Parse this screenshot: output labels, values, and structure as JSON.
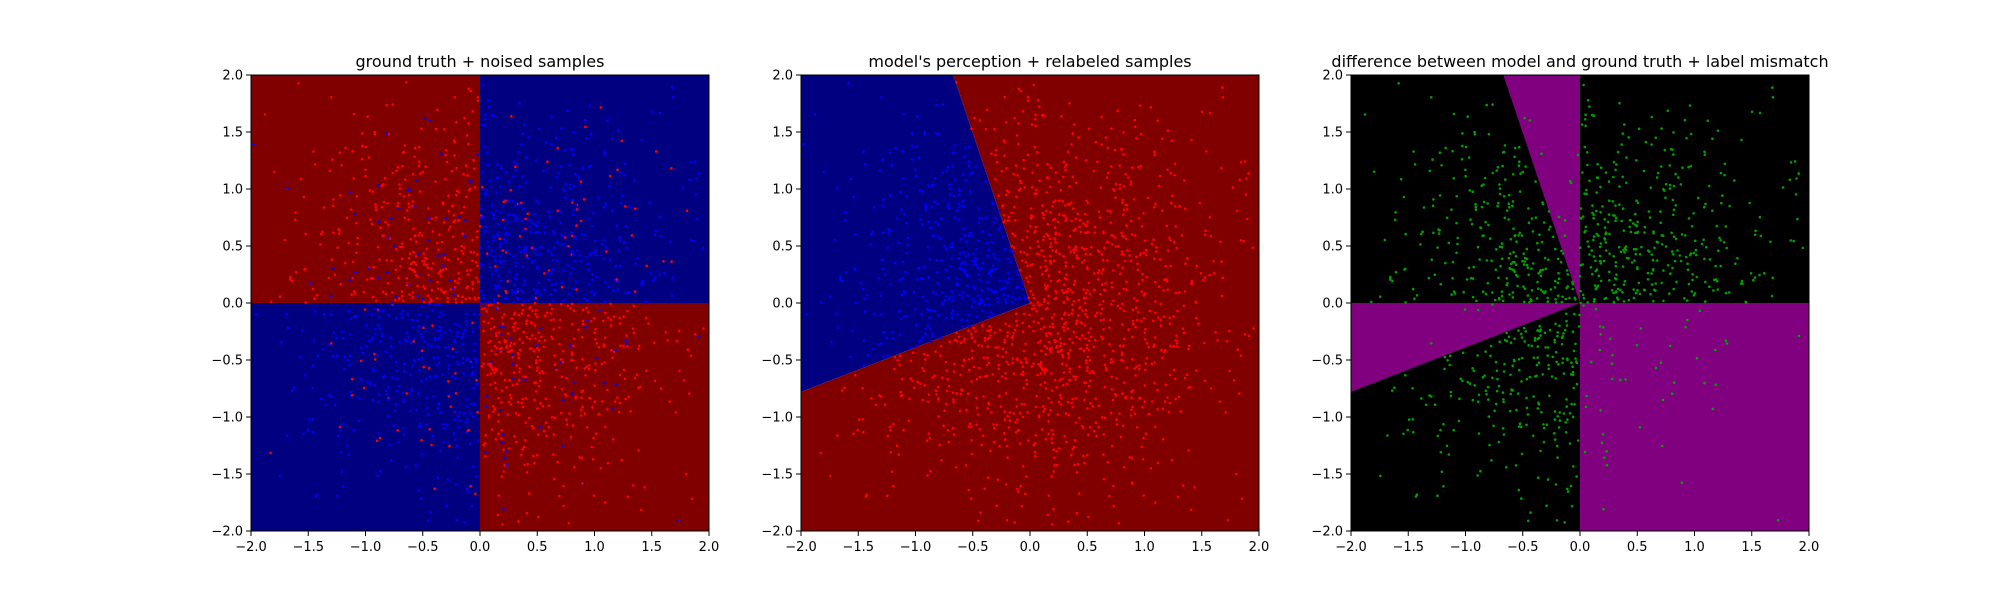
{
  "chart_data": [
    {
      "type": "heatmap",
      "title": "ground truth + noised samples",
      "xlim": [
        -2.0,
        2.0
      ],
      "ylim": [
        -2.0,
        2.0
      ],
      "xticks": [
        "−2.0",
        "−1.5",
        "−1.0",
        "−0.5",
        "0.0",
        "0.5",
        "1.0",
        "1.5",
        "2.0"
      ],
      "yticks": [
        "−2.0",
        "−1.5",
        "−1.0",
        "−0.5",
        "0.0",
        "0.5",
        "1.0",
        "1.5",
        "2.0"
      ],
      "xtick_values": [
        -2.0,
        -1.5,
        -1.0,
        -0.5,
        0.0,
        0.5,
        1.0,
        1.5,
        2.0
      ],
      "ytick_values": [
        -2.0,
        -1.5,
        -1.0,
        -0.5,
        0.0,
        0.5,
        1.0,
        1.5,
        2.0
      ],
      "grid": false,
      "regions": [
        {
          "polygon": [
            [
              -2,
              0
            ],
            [
              0,
              0
            ],
            [
              0,
              2
            ],
            [
              -2,
              2
            ]
          ],
          "color": "#800000"
        },
        {
          "polygon": [
            [
              0,
              0
            ],
            [
              2,
              0
            ],
            [
              2,
              2
            ],
            [
              0,
              2
            ]
          ],
          "color": "#000080"
        },
        {
          "polygon": [
            [
              -2,
              -2
            ],
            [
              0,
              -2
            ],
            [
              0,
              0
            ],
            [
              -2,
              0
            ]
          ],
          "color": "#000080"
        },
        {
          "polygon": [
            [
              0,
              -2
            ],
            [
              2,
              -2
            ],
            [
              2,
              0
            ],
            [
              0,
              0
            ]
          ],
          "color": "#800000"
        }
      ],
      "scatter": {
        "rule": "ground_truth_noised",
        "count": 1600,
        "density_sigma": 0.85,
        "colors": {
          "red": "#ff0000",
          "blue": "#0000ff"
        },
        "point_radius_px": 1.3
      }
    },
    {
      "type": "heatmap",
      "title": "model's perception + relabeled samples",
      "xlim": [
        -2.0,
        2.0
      ],
      "ylim": [
        -2.0,
        2.0
      ],
      "xticks": [
        "−2.0",
        "−1.5",
        "−1.0",
        "−0.5",
        "0.0",
        "0.5",
        "1.0",
        "1.5",
        "2.0"
      ],
      "yticks": [
        "−2.0",
        "−1.5",
        "−1.0",
        "−0.5",
        "0.0",
        "0.5",
        "1.0",
        "1.5",
        "2.0"
      ],
      "xtick_values": [
        -2.0,
        -1.5,
        -1.0,
        -0.5,
        0.0,
        0.5,
        1.0,
        1.5,
        2.0
      ],
      "ytick_values": [
        -2.0,
        -1.5,
        -1.0,
        -0.5,
        0.0,
        0.5,
        1.0,
        1.5,
        2.0
      ],
      "grid": false,
      "regions": [
        {
          "polygon": [
            [
              -2,
              2
            ],
            [
              -0.67,
              2
            ],
            [
              0,
              0
            ],
            [
              -2,
              -0.78
            ]
          ],
          "color": "#000080"
        },
        {
          "polygon": [
            [
              -0.67,
              2
            ],
            [
              2,
              2
            ],
            [
              2,
              -2
            ],
            [
              -2,
              -2
            ],
            [
              -2,
              -0.78
            ],
            [
              0,
              0
            ]
          ],
          "color": "#800000"
        }
      ],
      "scatter": {
        "rule": "model_relabeled",
        "count": 1600,
        "density_sigma": 0.85,
        "colors": {
          "red": "#ff0000",
          "blue": "#0000ff"
        },
        "point_radius_px": 1.3
      }
    },
    {
      "type": "heatmap",
      "title": "difference between model and ground truth + label mismatch",
      "xlim": [
        -2.0,
        2.0
      ],
      "ylim": [
        -2.0,
        2.0
      ],
      "xticks": [
        "−2.0",
        "−1.5",
        "−1.0",
        "−0.5",
        "0.0",
        "0.5",
        "1.0",
        "1.5",
        "2.0"
      ],
      "yticks": [
        "−2.0",
        "−1.5",
        "−1.0",
        "−0.5",
        "0.0",
        "0.5",
        "1.0",
        "1.5",
        "2.0"
      ],
      "xtick_values": [
        -2.0,
        -1.5,
        -1.0,
        -0.5,
        0.0,
        0.5,
        1.0,
        1.5,
        2.0
      ],
      "ytick_values": [
        -2.0,
        -1.5,
        -1.0,
        -0.5,
        0.0,
        0.5,
        1.0,
        1.5,
        2.0
      ],
      "grid": false,
      "regions": [
        {
          "polygon": [
            [
              -2,
              -2
            ],
            [
              2,
              -2
            ],
            [
              2,
              2
            ],
            [
              -2,
              2
            ]
          ],
          "color": "#000000"
        },
        {
          "polygon": [
            [
              -0.67,
              2
            ],
            [
              0,
              2
            ],
            [
              0,
              0
            ]
          ],
          "color": "#800080"
        },
        {
          "polygon": [
            [
              -2,
              0
            ],
            [
              0,
              0
            ],
            [
              -2,
              -0.78
            ]
          ],
          "color": "#800080"
        },
        {
          "polygon": [
            [
              0,
              -2
            ],
            [
              2,
              -2
            ],
            [
              2,
              0
            ],
            [
              0,
              0
            ]
          ],
          "color": "#800080"
        }
      ],
      "scatter": {
        "rule": "label_mismatch",
        "count": 1600,
        "density_sigma": 0.85,
        "colors": {
          "mismatch": "#00a000"
        },
        "point_radius_px": 1.3
      }
    }
  ]
}
